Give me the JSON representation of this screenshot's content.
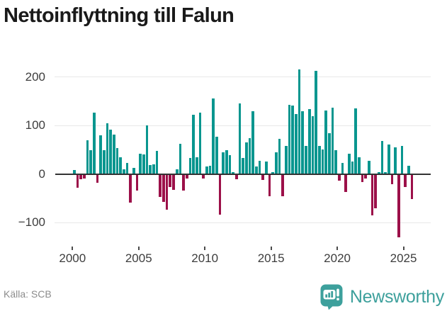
{
  "title": "Nettoinflyttning till Falun",
  "footer": {
    "source": "Källa: SCB",
    "brand": "Newsworthy"
  },
  "colors": {
    "positive_bar": "#09968f",
    "negative_bar": "#9c1049",
    "zero_axis": "#333333",
    "gridline": "#e8e8e8",
    "tick_label": "#3d3d3d",
    "title_text": "#1a1a1a",
    "source_text": "#8c8c8c",
    "brand_teal": "#3da09c"
  },
  "chart_data": {
    "type": "bar",
    "title": "Nettoinflyttning till Falun",
    "xlabel": "",
    "ylabel": "",
    "grid": true,
    "legend": null,
    "x_tick_years": [
      2000,
      2005,
      2010,
      2015,
      2020,
      2025
    ],
    "y_ticks": [
      200,
      100,
      0,
      -100
    ],
    "y_tick_labels": [
      "200",
      "100",
      "0",
      "−100"
    ],
    "ylim": [
      -155,
      235
    ],
    "frequency": "quarterly",
    "quarterly": [
      {
        "year": 2000,
        "values": [
          8,
          -27,
          -10,
          -8
        ]
      },
      {
        "year": 2001,
        "values": [
          70,
          49,
          127,
          -17
        ]
      },
      {
        "year": 2002,
        "values": [
          80,
          49,
          105,
          91
        ]
      },
      {
        "year": 2003,
        "values": [
          81,
          54,
          35,
          9
        ]
      },
      {
        "year": 2004,
        "values": [
          22,
          -57,
          12,
          -33
        ]
      },
      {
        "year": 2005,
        "values": [
          42,
          40,
          100,
          18
        ]
      },
      {
        "year": 2006,
        "values": [
          20,
          48,
          -46,
          -56
        ]
      },
      {
        "year": 2007,
        "values": [
          -72,
          -25,
          -31,
          10
        ]
      },
      {
        "year": 2008,
        "values": [
          62,
          -33,
          -8,
          33
        ]
      },
      {
        "year": 2009,
        "values": [
          122,
          34,
          126,
          -8
        ]
      },
      {
        "year": 2010,
        "values": [
          15,
          17,
          155,
          77
        ]
      },
      {
        "year": 2011,
        "values": [
          -83,
          44,
          49,
          39
        ]
      },
      {
        "year": 2012,
        "values": [
          4,
          -10,
          145,
          33
        ]
      },
      {
        "year": 2013,
        "values": [
          65,
          74,
          129,
          16
        ]
      },
      {
        "year": 2014,
        "values": [
          27,
          -11,
          25,
          -44
        ]
      },
      {
        "year": 2015,
        "values": [
          3,
          45,
          72,
          -44
        ]
      },
      {
        "year": 2016,
        "values": [
          57,
          142,
          141,
          124
        ]
      },
      {
        "year": 2017,
        "values": [
          215,
          129,
          58,
          133
        ]
      },
      {
        "year": 2018,
        "values": [
          119,
          212,
          58,
          51
        ]
      },
      {
        "year": 2019,
        "values": [
          131,
          84,
          137,
          49
        ]
      },
      {
        "year": 2020,
        "values": [
          -13,
          23,
          -36,
          42
        ]
      },
      {
        "year": 2021,
        "values": [
          26,
          135,
          35,
          -15
        ]
      },
      {
        "year": 2022,
        "values": [
          -8,
          27,
          -84,
          -69
        ]
      },
      {
        "year": 2023,
        "values": [
          3,
          68,
          3,
          60
        ]
      },
      {
        "year": 2024,
        "values": [
          -20,
          55,
          -129,
          58
        ]
      },
      {
        "year": 2025,
        "values": [
          -26,
          17,
          -50
        ]
      }
    ]
  }
}
